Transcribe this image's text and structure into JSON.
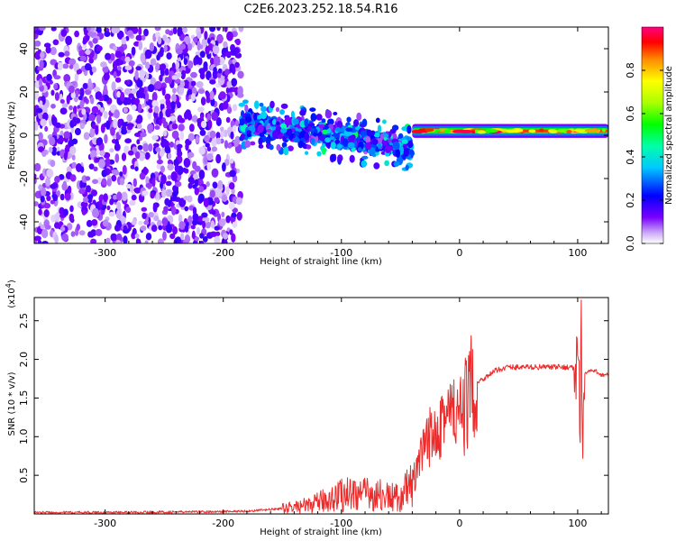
{
  "title": "C2E6.2023.252.18.54.R16",
  "colors": {
    "snr_line": "#ee2b2b",
    "frame": "#000000"
  },
  "chart_data": [
    {
      "type": "heatmap",
      "xlabel": "Height of straight line (km)",
      "ylabel": "Frequency (Hz)",
      "xlim": [
        -360,
        126
      ],
      "ylim": [
        -50,
        50
      ],
      "x_ticks": [
        "-300",
        "-200",
        "-100",
        "0",
        "100"
      ],
      "y_ticks": [
        "-40",
        "-20",
        "0",
        "20",
        "40"
      ],
      "colorbar": {
        "label": "Normalized spectral amplitude",
        "range": [
          0.0,
          1.0
        ],
        "ticks": [
          "0.0",
          "0.2",
          "0.4",
          "0.6",
          "0.8"
        ],
        "colormap": "rainbow (white→purple→blue→cyan→green→yellow→red→pink)"
      },
      "features": [
        {
          "x_range": [
            -360,
            -185
          ],
          "description": "broadband noise",
          "freq_range": [
            -50,
            50
          ],
          "amplitude": 0.1
        },
        {
          "x_range": [
            -185,
            -40
          ],
          "description": "spectral band tilting downward",
          "freq_start": 6,
          "freq_end": -6,
          "amplitude": 0.3
        },
        {
          "x_range": [
            -40,
            126
          ],
          "description": "narrow line near 2 Hz",
          "freq": 2,
          "amplitude": 0.9
        }
      ],
      "grid": false
    },
    {
      "type": "line",
      "xlabel": "Height of straight line (km)",
      "ylabel": "SNR (10 * v/v)",
      "scale_label": "(x10",
      "scale_exp": "4",
      "xlim": [
        -360,
        126
      ],
      "ylim": [
        0,
        28000
      ],
      "x_ticks": [
        "-300",
        "-200",
        "-100",
        "0",
        "100"
      ],
      "y_ticks": [
        "0.5",
        "1.0",
        "1.5",
        "2.0",
        "2.5"
      ],
      "series": [
        {
          "x": [
            -360,
            -300,
            -250,
            -200,
            -175,
            -150,
            -125,
            -110,
            -100,
            -90,
            -80,
            -70,
            -60,
            -50,
            -40,
            -35,
            -30,
            -25,
            -20,
            -15,
            -10,
            -5,
            0,
            5,
            10,
            15,
            20,
            25,
            30,
            40,
            50,
            60,
            70,
            80,
            90,
            95,
            98,
            100,
            101,
            102,
            103,
            104,
            105,
            110,
            115,
            120,
            126
          ],
          "y": [
            200,
            200,
            250,
            300,
            400,
            700,
            1200,
            2000,
            2500,
            2800,
            2500,
            2500,
            2200,
            2000,
            4000,
            6000,
            8000,
            10000,
            12000,
            13000,
            12500,
            13000,
            12000,
            14000,
            16000,
            17000,
            17500,
            18000,
            18500,
            19000,
            19000,
            19000,
            19000,
            19000,
            19000,
            19000,
            18500,
            18000,
            26000,
            10000,
            24000,
            8000,
            18000,
            18500,
            18500,
            18000,
            18000
          ]
        }
      ],
      "grid": false
    }
  ]
}
